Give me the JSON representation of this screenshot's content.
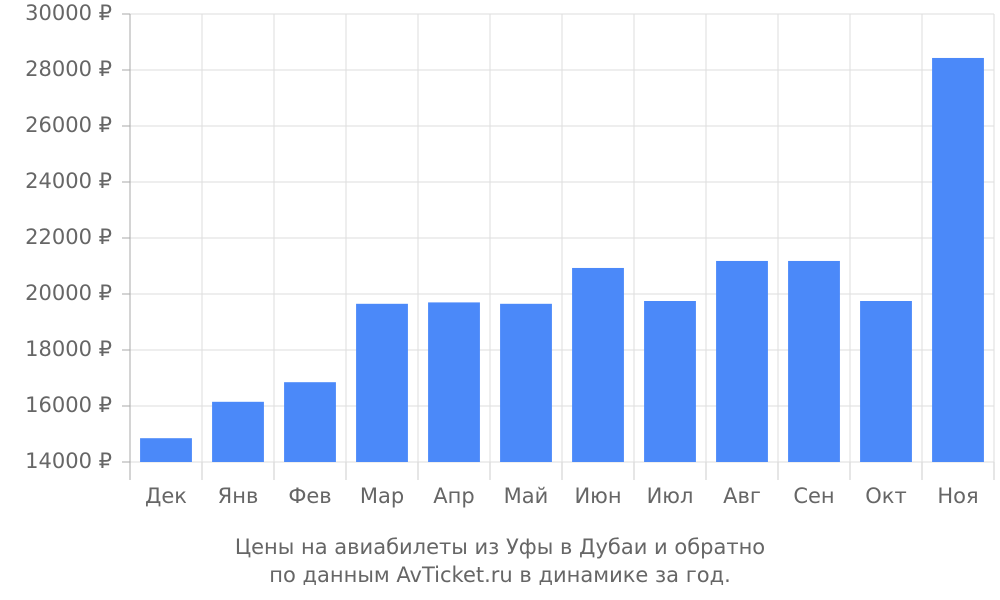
{
  "chart_data": {
    "type": "bar",
    "title": [
      "Цены на авиабилеты из Уфы в Дубаи и обратно",
      "по данным AvTicket.ru в динамике за год."
    ],
    "categories": [
      "Дек",
      "Янв",
      "Фев",
      "Мар",
      "Апр",
      "Май",
      "Июн",
      "Июл",
      "Авг",
      "Сен",
      "Окт",
      "Ноя"
    ],
    "values": [
      14850,
      16150,
      16850,
      19650,
      19700,
      19650,
      20930,
      19750,
      21180,
      21180,
      19750,
      28430
    ],
    "color": "#4b89f9",
    "ylim": [
      14000,
      30000
    ],
    "yticks": [
      {
        "value": 14000,
        "label": "14000 ₽"
      },
      {
        "value": 16000,
        "label": "16000 ₽"
      },
      {
        "value": 18000,
        "label": "18000 ₽"
      },
      {
        "value": 20000,
        "label": "20000 ₽"
      },
      {
        "value": 22000,
        "label": "22000 ₽"
      },
      {
        "value": 24000,
        "label": "24000 ₽"
      },
      {
        "value": 26000,
        "label": "26000 ₽"
      },
      {
        "value": 28000,
        "label": "28000 ₽"
      },
      {
        "value": 30000,
        "label": "30000 ₽"
      }
    ],
    "grid": true
  }
}
